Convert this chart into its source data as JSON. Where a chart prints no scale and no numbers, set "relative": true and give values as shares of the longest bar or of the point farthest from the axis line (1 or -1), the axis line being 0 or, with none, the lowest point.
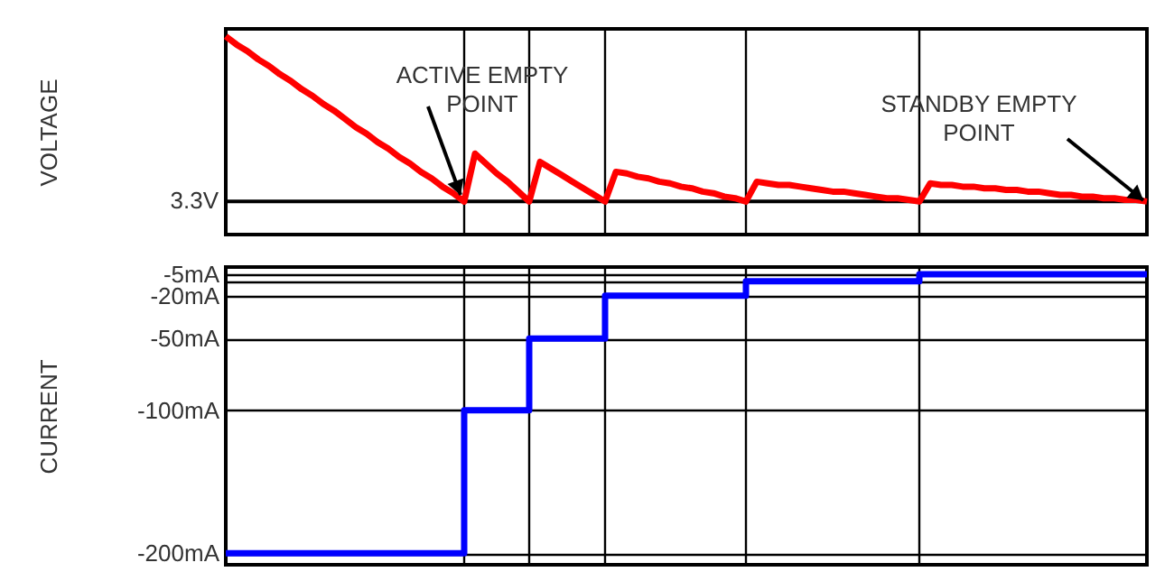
{
  "chart_data": [
    {
      "type": "line",
      "ylabel": "VOLTAGE",
      "relative": true,
      "marker": "none",
      "line_style": "solid",
      "tick_labels": false,
      "grid": "x",
      "categories": [
        null,
        null,
        null,
        null,
        null,
        null,
        null,
        null,
        null,
        null,
        null,
        null,
        null,
        null,
        null,
        null,
        null,
        null,
        null,
        null,
        null,
        null,
        null,
        null,
        null,
        null,
        null,
        null,
        null,
        null,
        null,
        null,
        null,
        null,
        null,
        null,
        null,
        null,
        null,
        null,
        null,
        null,
        null,
        null,
        null,
        null,
        null,
        null,
        null,
        null,
        null,
        null,
        null,
        null,
        null,
        null,
        null,
        null,
        null,
        null,
        null,
        null,
        null,
        null,
        null,
        null,
        null,
        null,
        null,
        null,
        null,
        null,
        null,
        null,
        null,
        null,
        null,
        null,
        null,
        null,
        null,
        null,
        null,
        null,
        null,
        null
      ],
      "series": [
        {
          "color": "#ff0000",
          "values": [
            1,
            0.95,
            0.91,
            0.86,
            0.82,
            0.77,
            0.73,
            0.68,
            0.64,
            0.59,
            0.55,
            0.5,
            0.45,
            0.41,
            0.36,
            0.32,
            0.27,
            0.23,
            0.18,
            0.14,
            0.09,
            0.05,
            0,
            0.29,
            0.23,
            0.17,
            0.12,
            0.06,
            0,
            0.24,
            0.2,
            0.16,
            0.12,
            0.08,
            0.04,
            0,
            0.18,
            0.17,
            0.15,
            0.14,
            0.12,
            0.11,
            0.09,
            0.08,
            0.06,
            0.05,
            0.03,
            0.02,
            0,
            0.12,
            0.11,
            0.1,
            0.1,
            0.09,
            0.08,
            0.07,
            0.06,
            0.06,
            0.05,
            0.04,
            0.03,
            0.02,
            0.02,
            0.01,
            0,
            0.11,
            0.1,
            0.1,
            0.09,
            0.09,
            0.08,
            0.08,
            0.07,
            0.07,
            0.06,
            0.06,
            0.05,
            0.04,
            0.04,
            0.03,
            0.03,
            0.02,
            0.02,
            0.01,
            0.01,
            0
          ]
        }
      ],
      "annotations": [
        "ACTIVE EMPTY\nPOINT",
        "STANDBY EMPTY\nPOINT",
        "3.3V"
      ]
    },
    {
      "type": "step",
      "ylabel": "CURRENT",
      "marker": "none",
      "line_style": "solid",
      "tick_labels": "y",
      "grid": true,
      "categories": [
        null,
        null,
        null,
        null,
        null,
        null,
        null,
        null,
        null,
        null,
        null,
        null,
        null,
        null,
        null,
        null,
        null,
        null,
        null,
        null,
        null,
        null,
        null,
        null,
        null,
        null,
        null,
        null,
        null,
        null,
        null,
        null,
        null,
        null,
        null,
        null,
        null,
        null,
        null,
        null,
        null,
        null,
        null,
        null,
        null,
        null,
        null,
        null,
        null,
        null,
        null,
        null,
        null,
        null,
        null,
        null,
        null,
        null,
        null,
        null,
        null,
        null,
        null,
        null,
        null,
        null,
        null,
        null,
        null,
        null,
        null,
        null,
        null,
        null,
        null,
        null,
        null,
        null,
        null,
        null,
        null,
        null,
        null,
        null,
        null,
        null
      ],
      "ylim": [
        -208,
        0
      ],
      "yticks": [
        {
          "value": -200,
          "label": "-200mA"
        },
        {
          "value": -100,
          "label": "-100mA"
        },
        {
          "value": -50,
          "label": "-50mA"
        },
        {
          "value": -20,
          "label": "-20mA"
        },
        {
          "value": -10,
          "label": null
        },
        {
          "value": -5,
          "label": "-5mA"
        }
      ],
      "series": [
        {
          "color": "#0000ff",
          "values": [
            -200,
            -200,
            -200,
            -200,
            -200,
            -200,
            -200,
            -200,
            -200,
            -200,
            -200,
            -200,
            -200,
            -200,
            -200,
            -200,
            -200,
            -200,
            -200,
            -200,
            -200,
            -200,
            -100,
            -100,
            -100,
            -100,
            -100,
            -100,
            -50,
            -50,
            -50,
            -50,
            -50,
            -50,
            -50,
            -20,
            -20,
            -20,
            -20,
            -20,
            -20,
            -20,
            -20,
            -20,
            -20,
            -20,
            -20,
            -20,
            -10,
            -10,
            -10,
            -10,
            -10,
            -10,
            -10,
            -10,
            -10,
            -10,
            -10,
            -10,
            -10,
            -10,
            -10,
            -10,
            -5,
            -5,
            -5,
            -5,
            -5,
            -5,
            -5,
            -5,
            -5,
            -5,
            -5,
            -5,
            -5,
            -5,
            -5,
            -5,
            -5,
            -5,
            -5,
            -5,
            -5,
            -5
          ]
        }
      ]
    }
  ]
}
